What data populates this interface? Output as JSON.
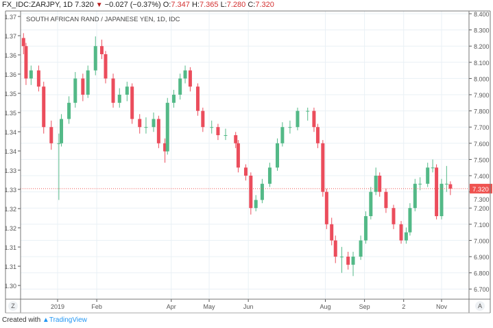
{
  "header": {
    "symbol": "FX_IDC:ZARJPY, 1D",
    "last": "7.320",
    "change": "−0.027 (−0.37%)",
    "o_label": "O:",
    "o": "7.347",
    "h_label": "H:",
    "h": "7.365",
    "l_label": "L:",
    "l": "7.280",
    "c_label": "C:",
    "c": "7.320"
  },
  "footer": {
    "created_with": "Created with",
    "brand": "TradingView"
  },
  "colors": {
    "up": "#53b987",
    "down": "#eb4d5c",
    "last_price": "#ef5350",
    "grid": "#e9f0f5"
  },
  "chart_data": {
    "type": "candlestick",
    "title": "SOUTH AFRICAN RAND / JAPANESE YEN, 1D, IDC",
    "last_price": 7.32,
    "last_price_label": "7.320",
    "ylim": [
      6.68,
      8.42
    ],
    "grid": true,
    "right_axis_ticks": [
      "8.400",
      "8.300",
      "8.200",
      "8.100",
      "8.000",
      "7.900",
      "7.800",
      "7.700",
      "7.600",
      "7.500",
      "7.400",
      "7.300",
      "7.200",
      "7.100",
      "7.000",
      "6.900",
      "6.800",
      "6.700"
    ],
    "left_axis_ticks": [
      "1.37",
      "1.37",
      "1.36",
      "1.36",
      "1.35",
      "1.35",
      "1.34",
      "1.34",
      "1.33",
      "1.33",
      "1.32",
      "1.32",
      "1.31",
      "1.31",
      "1.30"
    ],
    "x_ticks": [
      {
        "label": "2019",
        "date": "2019-01-01"
      },
      {
        "label": "Feb",
        "date": "2019-02-01"
      },
      {
        "label": "Apr",
        "date": "2019-04-01"
      },
      {
        "label": "May",
        "date": "2019-05-01"
      },
      {
        "label": "Jun",
        "date": "2019-06-01"
      },
      {
        "label": "Aug",
        "date": "2019-08-01"
      },
      {
        "label": "Sep",
        "date": "2019-09-01"
      },
      {
        "label": "2",
        "date": "2019-10-02"
      },
      {
        "label": "Nov",
        "date": "2019-11-01"
      }
    ],
    "axis_buttons": {
      "left": "Z",
      "right": "A"
    },
    "candles_columns": [
      "date",
      "open",
      "high",
      "low",
      "close"
    ],
    "candles": [
      [
        "2018-12-05",
        8.25,
        8.28,
        8.15,
        8.2
      ],
      [
        "2018-12-07",
        8.2,
        8.22,
        7.96,
        8.0
      ],
      [
        "2018-12-11",
        8.0,
        8.08,
        7.96,
        8.05
      ],
      [
        "2018-12-17",
        8.05,
        8.08,
        7.92,
        7.95
      ],
      [
        "2018-12-21",
        7.95,
        7.98,
        7.66,
        7.7
      ],
      [
        "2018-12-27",
        7.7,
        7.74,
        7.56,
        7.6
      ],
      [
        "2019-01-02",
        7.6,
        7.66,
        7.25,
        7.6
      ],
      [
        "2019-01-04",
        7.6,
        7.78,
        7.58,
        7.75
      ],
      [
        "2019-01-10",
        7.75,
        7.89,
        7.72,
        7.85
      ],
      [
        "2019-01-15",
        7.85,
        8.04,
        7.82,
        8.0
      ],
      [
        "2019-01-21",
        8.0,
        8.03,
        7.86,
        7.9
      ],
      [
        "2019-01-25",
        7.9,
        8.08,
        7.88,
        8.05
      ],
      [
        "2019-01-31",
        8.05,
        8.26,
        8.02,
        8.2
      ],
      [
        "2019-02-05",
        8.2,
        8.24,
        8.12,
        8.15
      ],
      [
        "2019-02-08",
        8.15,
        8.17,
        7.97,
        8.0
      ],
      [
        "2019-02-14",
        8.0,
        8.03,
        7.82,
        7.85
      ],
      [
        "2019-02-19",
        7.85,
        7.94,
        7.82,
        7.9
      ],
      [
        "2019-02-25",
        7.9,
        7.98,
        7.86,
        7.95
      ],
      [
        "2019-03-01",
        7.95,
        7.97,
        7.72,
        7.75
      ],
      [
        "2019-03-07",
        7.75,
        7.78,
        7.66,
        7.7
      ],
      [
        "2019-03-12",
        7.7,
        7.76,
        7.66,
        7.7
      ],
      [
        "2019-03-18",
        7.7,
        7.79,
        7.67,
        7.75
      ],
      [
        "2019-03-22",
        7.75,
        7.77,
        7.57,
        7.6
      ],
      [
        "2019-03-27",
        7.6,
        7.63,
        7.48,
        7.55
      ],
      [
        "2019-03-29",
        7.55,
        7.88,
        7.53,
        7.85
      ],
      [
        "2019-04-03",
        7.85,
        7.93,
        7.82,
        7.9
      ],
      [
        "2019-04-08",
        7.9,
        8.03,
        7.87,
        8.0
      ],
      [
        "2019-04-12",
        8.0,
        8.08,
        7.97,
        8.05
      ],
      [
        "2019-04-16",
        8.05,
        8.07,
        7.92,
        7.95
      ],
      [
        "2019-04-22",
        7.95,
        7.97,
        7.77,
        7.8
      ],
      [
        "2019-04-26",
        7.8,
        7.82,
        7.67,
        7.7
      ],
      [
        "2019-05-03",
        7.7,
        7.74,
        7.66,
        7.7
      ],
      [
        "2019-05-08",
        7.7,
        7.72,
        7.62,
        7.65
      ],
      [
        "2019-05-14",
        7.65,
        7.69,
        7.62,
        7.65
      ],
      [
        "2019-05-22",
        7.65,
        7.67,
        7.57,
        7.6
      ],
      [
        "2019-05-24",
        7.6,
        7.62,
        7.42,
        7.45
      ],
      [
        "2019-05-30",
        7.45,
        7.47,
        7.37,
        7.4
      ],
      [
        "2019-06-03",
        7.4,
        7.42,
        7.16,
        7.2
      ],
      [
        "2019-06-07",
        7.2,
        7.28,
        7.18,
        7.25
      ],
      [
        "2019-06-12",
        7.25,
        7.38,
        7.23,
        7.35
      ],
      [
        "2019-06-18",
        7.35,
        7.48,
        7.33,
        7.45
      ],
      [
        "2019-06-24",
        7.45,
        7.63,
        7.43,
        7.6
      ],
      [
        "2019-06-28",
        7.6,
        7.73,
        7.58,
        7.7
      ],
      [
        "2019-07-04",
        7.7,
        7.74,
        7.66,
        7.7
      ],
      [
        "2019-07-10",
        7.7,
        7.82,
        7.68,
        7.8
      ],
      [
        "2019-07-18",
        7.8,
        7.82,
        7.74,
        7.8
      ],
      [
        "2019-07-23",
        7.8,
        7.82,
        7.67,
        7.7
      ],
      [
        "2019-07-26",
        7.7,
        7.72,
        7.57,
        7.6
      ],
      [
        "2019-07-30",
        7.6,
        7.62,
        7.27,
        7.3
      ],
      [
        "2019-08-02",
        7.3,
        7.32,
        7.07,
        7.1
      ],
      [
        "2019-08-06",
        7.1,
        7.14,
        6.97,
        7.0
      ],
      [
        "2019-08-09",
        7.0,
        7.03,
        6.86,
        6.9
      ],
      [
        "2019-08-14",
        6.9,
        6.96,
        6.8,
        6.9
      ],
      [
        "2019-08-19",
        6.9,
        6.93,
        6.82,
        6.85
      ],
      [
        "2019-08-23",
        6.85,
        6.93,
        6.78,
        6.9
      ],
      [
        "2019-08-29",
        6.9,
        7.03,
        6.88,
        7.0
      ],
      [
        "2019-09-02",
        7.0,
        7.18,
        6.98,
        7.15
      ],
      [
        "2019-09-06",
        7.15,
        7.33,
        7.13,
        7.3
      ],
      [
        "2019-09-10",
        7.3,
        7.45,
        7.28,
        7.4
      ],
      [
        "2019-09-13",
        7.4,
        7.42,
        7.27,
        7.3
      ],
      [
        "2019-09-18",
        7.3,
        7.32,
        7.17,
        7.2
      ],
      [
        "2019-09-24",
        7.2,
        7.22,
        7.07,
        7.1
      ],
      [
        "2019-09-30",
        7.1,
        7.12,
        6.98,
        7.0
      ],
      [
        "2019-10-04",
        7.0,
        7.08,
        6.98,
        7.05
      ],
      [
        "2019-10-07",
        7.05,
        7.23,
        7.03,
        7.2
      ],
      [
        "2019-10-11",
        7.2,
        7.38,
        7.18,
        7.35
      ],
      [
        "2019-10-15",
        7.35,
        7.39,
        7.31,
        7.35
      ],
      [
        "2019-10-21",
        7.35,
        7.48,
        7.33,
        7.45
      ],
      [
        "2019-10-25",
        7.45,
        7.5,
        7.42,
        7.45
      ],
      [
        "2019-10-28",
        7.45,
        7.47,
        7.13,
        7.15
      ],
      [
        "2019-11-01",
        7.15,
        7.38,
        7.13,
        7.35
      ],
      [
        "2019-11-05",
        7.35,
        7.46,
        7.3,
        7.35
      ],
      [
        "2019-11-08",
        7.347,
        7.365,
        7.28,
        7.32
      ]
    ]
  }
}
